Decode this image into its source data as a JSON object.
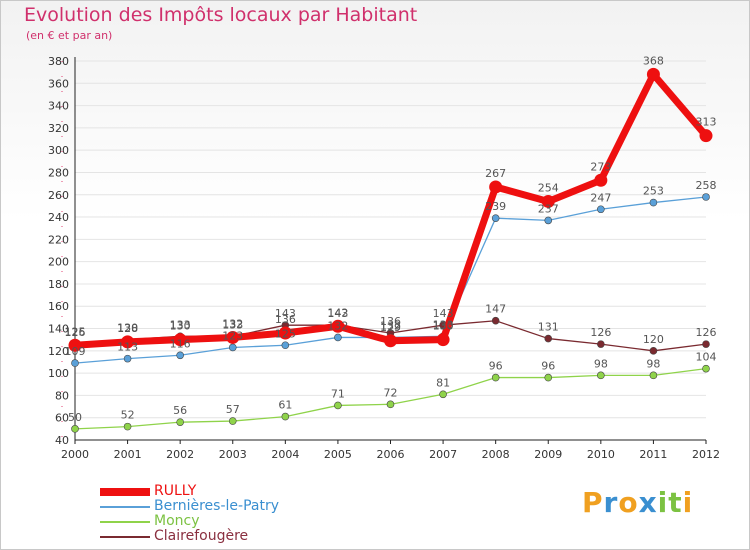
{
  "header": {
    "title": "Evolution des Impôts locaux par Habitant",
    "subtitle": "(en € et par an)"
  },
  "brand": {
    "letters": [
      "P",
      "r",
      "o",
      "x",
      "i",
      "t",
      "i"
    ],
    "colors": [
      "#f0a020",
      "#3a8fd0",
      "#f0a020",
      "#3a8fd0",
      "#7cc242",
      "#7cc242",
      "#f0a020"
    ]
  },
  "chart_data": {
    "type": "line",
    "title": "Evolution des Impôts locaux par Habitant",
    "subtitle": "(en € et par an)",
    "xlabel": "",
    "ylabel": "",
    "categories": [
      "2000",
      "2001",
      "2002",
      "2003",
      "2004",
      "2005",
      "2006",
      "2007",
      "2008",
      "2009",
      "2010",
      "2011",
      "2012"
    ],
    "ylim": [
      40,
      380
    ],
    "yticks": [
      40,
      60,
      80,
      100,
      120,
      140,
      160,
      180,
      200,
      220,
      240,
      260,
      280,
      300,
      320,
      340,
      360,
      380
    ],
    "grid": "horizontal",
    "legend_position": "bottom-left",
    "series": [
      {
        "name": "Clairefougère",
        "color": "#7a2a30",
        "values": [
          126,
          130,
          133,
          133,
          143,
          143,
          136,
          143,
          147,
          131,
          126,
          120,
          126
        ]
      },
      {
        "name": "Moncy",
        "color": "#8fd34a",
        "values": [
          50,
          52,
          56,
          57,
          61,
          71,
          72,
          81,
          96,
          96,
          98,
          98,
          104
        ]
      },
      {
        "name": "Bernières-le-Patry",
        "color": "#5aa0d8",
        "values": [
          109,
          113,
          116,
          123,
          125,
          132,
          132,
          133,
          239,
          237,
          247,
          253,
          258
        ]
      },
      {
        "name": "RULLY",
        "color": "#ee1010",
        "values": [
          125,
          128,
          130,
          132,
          136,
          142,
          129,
          130,
          267,
          254,
          273,
          368,
          313
        ]
      }
    ],
    "legend_order": [
      "RULLY",
      "Bernières-le-Patry",
      "Moncy",
      "Clairefougère"
    ]
  }
}
